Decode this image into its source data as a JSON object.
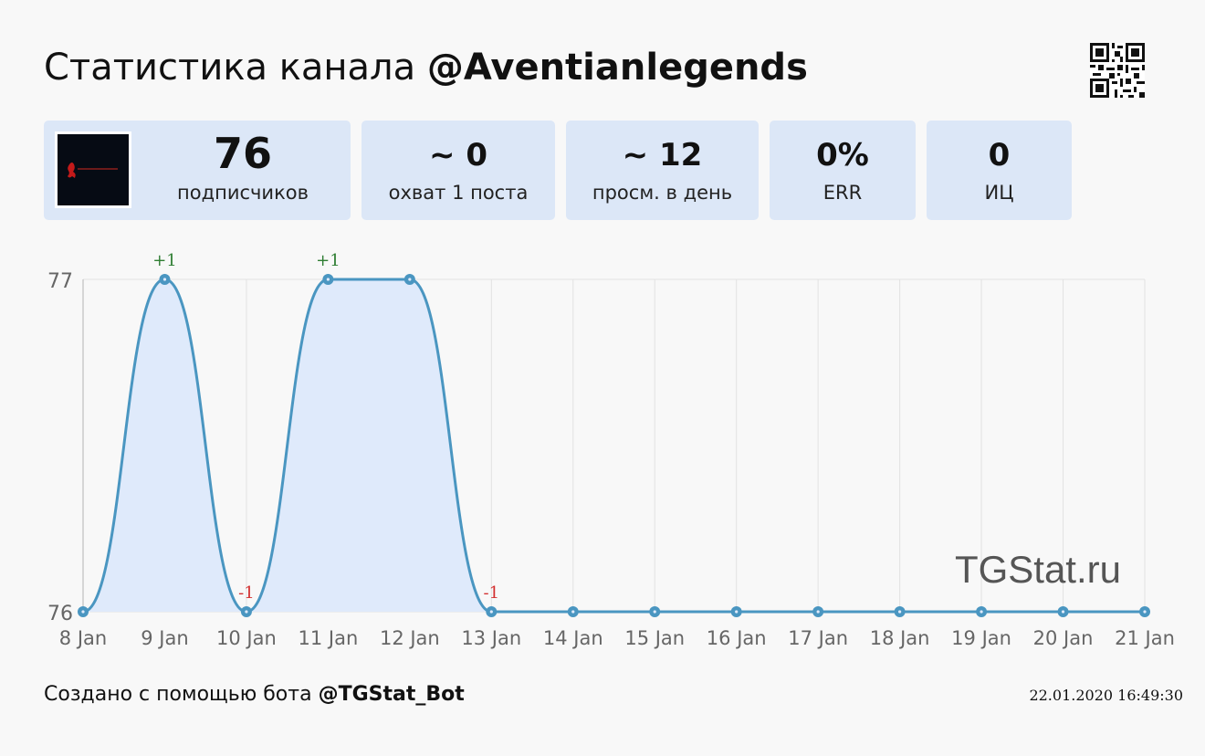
{
  "header": {
    "title_prefix": "Статистика канала ",
    "channel": "@Aventianlegends"
  },
  "qr_code": {
    "icon": "qr-code-icon"
  },
  "stats": [
    {
      "value": "76",
      "label": "подписчиков"
    },
    {
      "value": "~ 0",
      "label": "охват 1 поста"
    },
    {
      "value": "~ 12",
      "label": "просм. в день"
    },
    {
      "value": "0%",
      "label": "ERR"
    },
    {
      "value": "0",
      "label": "ИЦ"
    }
  ],
  "avatar": {
    "icon": "channel-avatar-icon"
  },
  "chart_data": {
    "type": "area",
    "categories": [
      "8 Jan",
      "9 Jan",
      "10 Jan",
      "11 Jan",
      "12 Jan",
      "13 Jan",
      "14 Jan",
      "15 Jan",
      "16 Jan",
      "17 Jan",
      "18 Jan",
      "19 Jan",
      "20 Jan",
      "21 Jan"
    ],
    "values": [
      76,
      77,
      76,
      77,
      77,
      76,
      76,
      76,
      76,
      76,
      76,
      76,
      76,
      76
    ],
    "ylim": [
      76,
      77
    ],
    "yticks": [
      "76",
      "77"
    ],
    "point_labels": [
      {
        "index": 1,
        "text": "+1",
        "kind": "up"
      },
      {
        "index": 2,
        "text": "-1",
        "kind": "down"
      },
      {
        "index": 3,
        "text": "+1",
        "kind": "up"
      },
      {
        "index": 5,
        "text": "-1",
        "kind": "down"
      }
    ],
    "watermark": "TGStat.ru",
    "grid": true,
    "colors": {
      "line": "#4a96c1",
      "fill": "#dfeafb",
      "up": "#2e7d32",
      "down": "#d32f2f",
      "grid": "#e2e2e2"
    }
  },
  "footer": {
    "created_prefix": "Создано с помощью бота ",
    "bot": "@TGStat_Bot",
    "timestamp": "22.01.2020 16:49:30"
  }
}
